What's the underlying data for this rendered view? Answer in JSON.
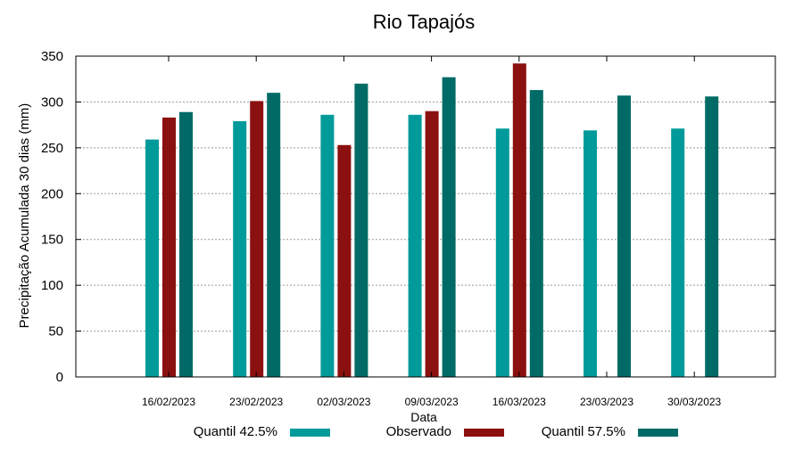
{
  "chart_data": {
    "type": "bar",
    "title": "Rio Tapajós",
    "xlabel": "Data",
    "ylabel": "Precipitação Acumulada 30 dias (mm)",
    "ylim": [
      0,
      350
    ],
    "yticks": [
      0,
      50,
      100,
      150,
      200,
      250,
      300,
      350
    ],
    "grid": true,
    "legend_position": "bottom",
    "categories": [
      "16/02/2023",
      "23/02/2023",
      "02/03/2023",
      "09/03/2023",
      "16/03/2023",
      "23/03/2023",
      "30/03/2023"
    ],
    "series": [
      {
        "name": "Quantil 42.5%",
        "color": "#009a9a",
        "values": [
          259,
          279,
          286,
          286,
          271,
          269,
          271
        ]
      },
      {
        "name": "Observado",
        "color": "#8b1010",
        "values": [
          283,
          301,
          253,
          290,
          342,
          null,
          null
        ]
      },
      {
        "name": "Quantil 57.5%",
        "color": "#006b66",
        "values": [
          289,
          310,
          320,
          327,
          313,
          307,
          306
        ]
      }
    ]
  }
}
